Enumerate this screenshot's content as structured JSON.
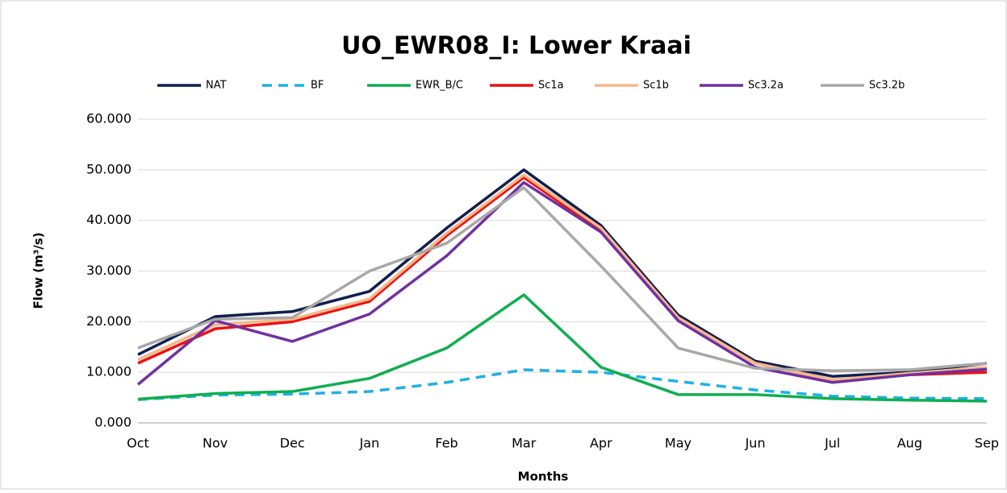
{
  "chart_data": {
    "type": "line",
    "title": "UO_EWR08_I: Lower Kraai",
    "x_label": "Months",
    "y_label": "Flow (m³/s)",
    "categories": [
      "Oct",
      "Nov",
      "Dec",
      "Jan",
      "Feb",
      "Mar",
      "Apr",
      "May",
      "Jun",
      "Jul",
      "Aug",
      "Sep"
    ],
    "ylim": [
      0,
      60
    ],
    "yticks": [
      {
        "value": 0,
        "label": "0.000"
      },
      {
        "value": 10,
        "label": "10.000"
      },
      {
        "value": 20,
        "label": "20.000"
      },
      {
        "value": 30,
        "label": "30.000"
      },
      {
        "value": 40,
        "label": "40.000"
      },
      {
        "value": 50,
        "label": "50.000"
      },
      {
        "value": 60,
        "label": "60.000"
      }
    ],
    "grid": true,
    "legend": "top",
    "series": [
      {
        "name": "NAT",
        "color": "#0f1f4f",
        "values": [
          13.5,
          21,
          22,
          26,
          38.5,
          50,
          39,
          21.3,
          12.2,
          9.2,
          10,
          11.8
        ]
      },
      {
        "name": "BF",
        "color": "#1fb0e6",
        "dashed": true,
        "values": [
          4.6,
          5.5,
          5.7,
          6.2,
          8.0,
          10.5,
          10.0,
          8.2,
          6.5,
          5.3,
          4.9,
          4.8
        ]
      },
      {
        "name": "EWR_B/C",
        "color": "#0fae4f",
        "values": [
          4.7,
          5.8,
          6.2,
          8.8,
          14.8,
          25.3,
          11.0,
          5.6,
          5.6,
          4.8,
          4.5,
          4.3
        ]
      },
      {
        "name": "Sc1a",
        "color": "#ee1111",
        "values": [
          11.8,
          18.6,
          20.0,
          24.0,
          37.0,
          48.5,
          38.0,
          20.8,
          11.8,
          8.5,
          9.5,
          10.0
        ]
      },
      {
        "name": "Sc1b",
        "color": "#f5b88a",
        "values": [
          12.5,
          19.4,
          20.5,
          24.5,
          37.5,
          49.0,
          38.5,
          20.8,
          11.8,
          8.5,
          9.8,
          11.0
        ]
      },
      {
        "name": "Sc3.2a",
        "color": "#7030a0",
        "values": [
          7.6,
          20.2,
          16.1,
          21.5,
          33.0,
          47.5,
          37.7,
          20.2,
          11.0,
          8.0,
          9.5,
          10.6
        ]
      },
      {
        "name": "Sc3.2b",
        "color": "#a8a8a8",
        "values": [
          14.8,
          20.5,
          20.8,
          30.0,
          35.5,
          46.5,
          31.0,
          14.8,
          10.8,
          10.3,
          10.5,
          11.8
        ]
      }
    ]
  }
}
